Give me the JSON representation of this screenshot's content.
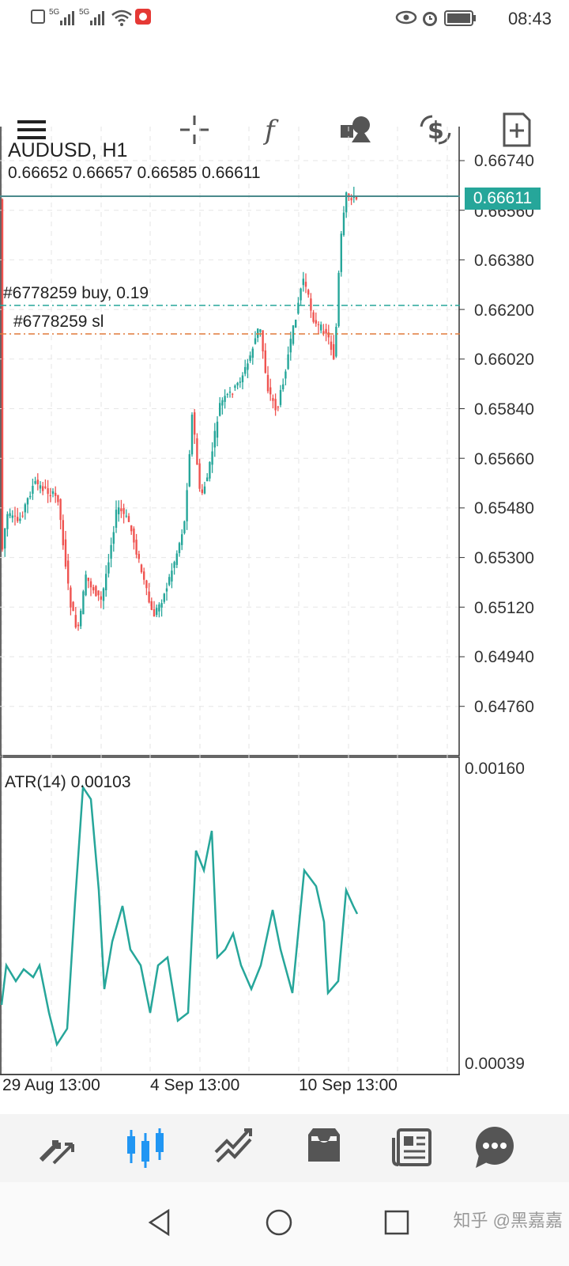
{
  "status_bar": {
    "left_icons": [
      "sim-icon",
      "5g-signal-icon",
      "5g-signal-icon",
      "wifi-icon",
      "app-notification-icon"
    ],
    "signal_labels": [
      "5G",
      "5G"
    ],
    "time": "08:43",
    "right_icons": [
      "eye-icon",
      "alarm-icon",
      "battery-icon"
    ]
  },
  "toolbar": {
    "icons": [
      "menu-icon",
      "crosshair-icon",
      "function-icon",
      "shapes-icon",
      "currency-exchange-icon",
      "new-order-icon"
    ]
  },
  "chart": {
    "symbol_timeframe": "AUDUSD, H1",
    "ohlc": "0.66652 0.66657 0.66585 0.66611",
    "current_price": "0.66611",
    "price_labels": [
      "0.66740",
      "0.66560",
      "0.66380",
      "0.66200",
      "0.66020",
      "0.65840",
      "0.65660",
      "0.65480",
      "0.65300",
      "0.65120",
      "0.64940",
      "0.64760"
    ],
    "order_buy_label": "#6778259 buy, 0.19",
    "order_sl_label": "#6778259 sl",
    "colors": {
      "bull": "#26a69a",
      "bear": "#ef5350",
      "buy_line": "#26a69a",
      "sl_line": "#e07a3a"
    }
  },
  "indicator": {
    "label": "ATR(14) 0.00103",
    "scale_top": "0.00160",
    "scale_bottom": "0.00039"
  },
  "time_axis": [
    "29 Aug 13:00",
    "4 Sep 13:00",
    "10 Sep 13:00"
  ],
  "bottom_nav": {
    "items": [
      "quotes-icon",
      "chart-icon",
      "trade-icon",
      "history-icon",
      "news-icon",
      "chat-icon"
    ],
    "active": "chart-icon"
  },
  "system_nav": [
    "back-icon",
    "home-icon",
    "recents-icon"
  ],
  "watermark": "知乎 @黑嘉嘉"
}
